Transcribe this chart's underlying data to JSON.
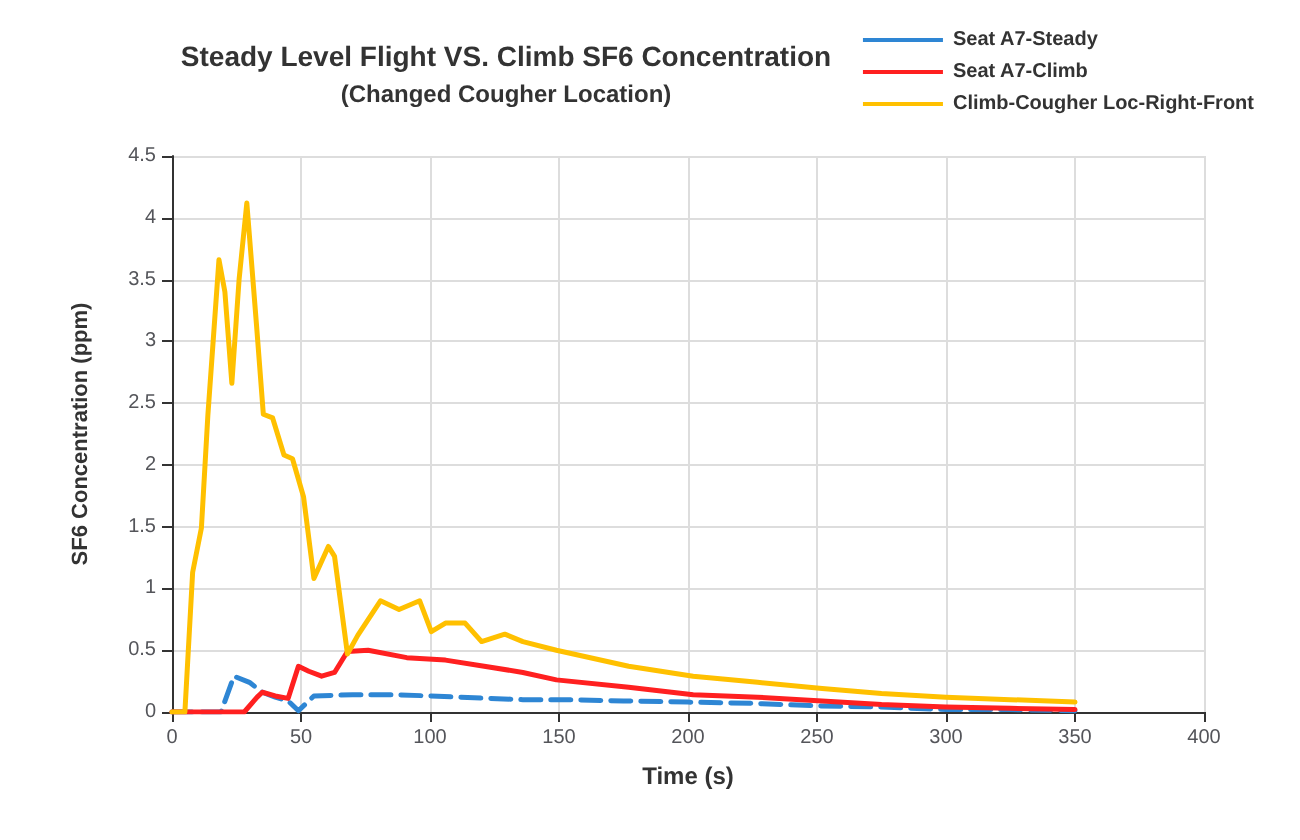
{
  "chart_data": {
    "type": "line",
    "title": "Steady Level Flight VS. Climb SF6 Concentration",
    "subtitle": "(Changed Cougher Location)",
    "xlabel": "Time (s)",
    "ylabel": "SF6 Concentration (ppm)",
    "xlim": [
      0,
      400
    ],
    "xticks": [
      0,
      50,
      100,
      150,
      200,
      250,
      300,
      350,
      400
    ],
    "ylim": [
      0,
      4.5
    ],
    "yticks": [
      0,
      0.5,
      1,
      1.5,
      2,
      2.5,
      3,
      3.5,
      4,
      4.5
    ],
    "grid": true,
    "legend": "top right",
    "marker": "none",
    "series": [
      {
        "name": "Seat A7-Steady",
        "color": "#2e86d4",
        "line_style": "dashed",
        "x": [
          0,
          19,
          24,
          30,
          35,
          40,
          45,
          49,
          55,
          70,
          86,
          100,
          111,
          136,
          150,
          175,
          200,
          225,
          250,
          275,
          300,
          325,
          350
        ],
        "values": [
          0,
          0,
          0.29,
          0.24,
          0.16,
          0.12,
          0.09,
          0.01,
          0.13,
          0.14,
          0.14,
          0.13,
          0.12,
          0.1,
          0.1,
          0.09,
          0.08,
          0.07,
          0.05,
          0.04,
          0.02,
          0.02,
          0.01
        ]
      },
      {
        "name": "Seat A7-Climb",
        "color": "#ff2020",
        "line_style": "solid",
        "x": [
          0,
          28,
          33,
          35,
          40,
          45,
          49,
          53,
          58,
          63,
          68,
          76,
          91,
          106,
          121,
          136,
          149,
          177,
          202,
          227,
          252,
          275,
          300,
          325,
          350
        ],
        "values": [
          0,
          0,
          0.12,
          0.16,
          0.13,
          0.11,
          0.37,
          0.33,
          0.29,
          0.32,
          0.49,
          0.5,
          0.44,
          0.42,
          0.37,
          0.32,
          0.26,
          0.2,
          0.14,
          0.12,
          0.09,
          0.06,
          0.04,
          0.03,
          0.02
        ]
      },
      {
        "name": "Climb-Cougher Loc-Right-Front",
        "color": "#ffc000",
        "line_style": "solid",
        "x": [
          0,
          5,
          8,
          11.4,
          13.9,
          18.2,
          20.5,
          23.2,
          26,
          29,
          32.8,
          35.4,
          39,
          43.4,
          46.7,
          51,
          55,
          60.6,
          63,
          68,
          72,
          80.8,
          88,
          96,
          100.5,
          106,
          113.6,
          120,
          129,
          136,
          149,
          177,
          202,
          227,
          252,
          275,
          300,
          325,
          350
        ],
        "values": [
          0,
          0,
          1.13,
          1.49,
          2.4,
          3.66,
          3.4,
          2.66,
          3.5,
          4.12,
          3.12,
          2.41,
          2.38,
          2.08,
          2.05,
          1.74,
          1.08,
          1.34,
          1.26,
          0.47,
          0.62,
          0.9,
          0.83,
          0.9,
          0.65,
          0.72,
          0.72,
          0.57,
          0.63,
          0.57,
          0.5,
          0.37,
          0.29,
          0.24,
          0.19,
          0.15,
          0.12,
          0.1,
          0.08
        ]
      }
    ]
  }
}
